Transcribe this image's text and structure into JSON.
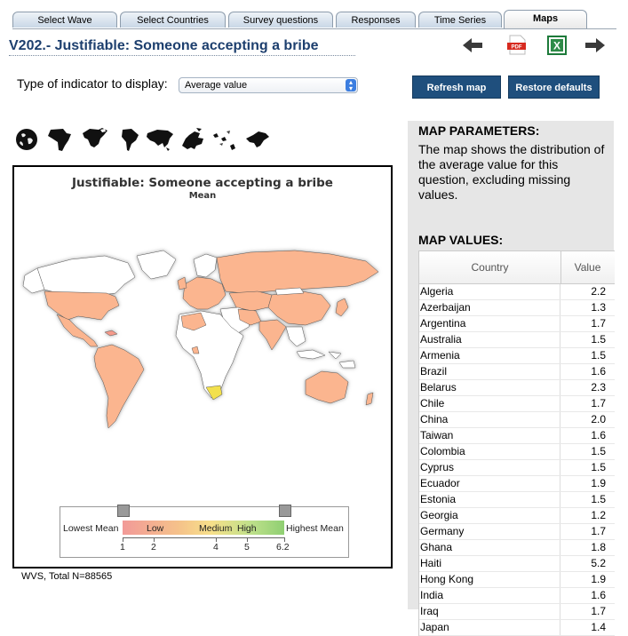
{
  "tabs": [
    {
      "label": "Select Wave"
    },
    {
      "label": "Select Countries"
    },
    {
      "label": "Survey questions"
    },
    {
      "label": "Responses"
    },
    {
      "label": "Time Series"
    },
    {
      "label": "Maps",
      "active": true
    }
  ],
  "page_title": "V202.- Justifiable: Someone accepting a bribe",
  "toolbar": {
    "back_icon": "arrow-left-icon",
    "pdf_icon": "pdf-icon",
    "pdf_label": "PDF",
    "excel_icon": "excel-icon",
    "excel_label": "X",
    "forward_icon": "arrow-right-icon"
  },
  "indicator": {
    "label": "Type of indicator to display:",
    "selected": "Average value"
  },
  "buttons": {
    "refresh": "Refresh map",
    "restore": "Restore defaults"
  },
  "regions": [
    "world-globe-icon",
    "africa-icon",
    "north-america-icon",
    "south-america-icon",
    "asia-icon",
    "europe-icon",
    "oceania-icon",
    "middle-east-icon"
  ],
  "map": {
    "title": "Justifiable: Someone accepting a bribe",
    "subtitle": "Mean",
    "legend": {
      "lowest": "Lowest Mean",
      "highest": "Highest Mean",
      "low": "Low",
      "medium": "Medium",
      "high": "High",
      "ticks": [
        "1",
        "2",
        "4",
        "5",
        "6.2"
      ]
    },
    "colors": {
      "land": "#ffffff",
      "data_fill": "#fbb58f",
      "high": "#f59a8a",
      "lowest": "#f2e04d",
      "shadow": "#b9b9b9"
    }
  },
  "footnote": "WVS, Total N=88565",
  "side": {
    "params_heading": "MAP PARAMETERS:",
    "params_text": "The map shows the distribution of the average value for this question, excluding missing values.",
    "values_heading": "MAP VALUES:",
    "table_headers": [
      "Country",
      "Value"
    ],
    "rows": [
      [
        "Algeria",
        "2.2"
      ],
      [
        "Azerbaijan",
        "1.3"
      ],
      [
        "Argentina",
        "1.7"
      ],
      [
        "Australia",
        "1.5"
      ],
      [
        "Armenia",
        "1.5"
      ],
      [
        "Brazil",
        "1.6"
      ],
      [
        "Belarus",
        "2.3"
      ],
      [
        "Chile",
        "1.7"
      ],
      [
        "China",
        "2.0"
      ],
      [
        "Taiwan",
        "1.6"
      ],
      [
        "Colombia",
        "1.5"
      ],
      [
        "Cyprus",
        "1.5"
      ],
      [
        "Ecuador",
        "1.9"
      ],
      [
        "Estonia",
        "1.5"
      ],
      [
        "Georgia",
        "1.2"
      ],
      [
        "Germany",
        "1.7"
      ],
      [
        "Ghana",
        "1.8"
      ],
      [
        "Haiti",
        "5.2"
      ],
      [
        "Hong Kong",
        "1.9"
      ],
      [
        "India",
        "1.6"
      ],
      [
        "Iraq",
        "1.7"
      ],
      [
        "Japan",
        "1.4"
      ]
    ]
  }
}
